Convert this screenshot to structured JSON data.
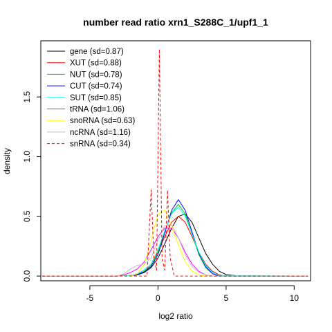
{
  "chart_data": {
    "type": "line",
    "title": "number read ratio xrn1_S288C_1/upf1_1",
    "xlabel": "log2 ratio",
    "ylabel": "density",
    "xlim": [
      -8.6,
      11.2
    ],
    "ylim": [
      -0.04,
      1.97
    ],
    "xticks": [
      -5,
      0,
      5,
      10
    ],
    "yticks": [
      0.0,
      0.5,
      1.0,
      1.5
    ],
    "xtick_labels": [
      "-5",
      "0",
      "5",
      "10"
    ],
    "ytick_labels": [
      "0.0",
      "0.5",
      "1.0",
      "1.5"
    ],
    "grid": false,
    "legend_position": "top-left",
    "series": [
      {
        "name": "gene (sd=0.87)",
        "color": "#000000",
        "dash": "solid",
        "x": [
          -8.5,
          -3,
          -2,
          -1.5,
          -1,
          -0.5,
          0,
          0.5,
          1,
          1.5,
          2,
          2.5,
          3,
          3.5,
          4,
          4.5,
          5,
          6,
          11
        ],
        "y": [
          0,
          0,
          0.003,
          0.01,
          0.03,
          0.07,
          0.15,
          0.27,
          0.4,
          0.5,
          0.52,
          0.45,
          0.32,
          0.19,
          0.1,
          0.04,
          0.012,
          0,
          0
        ]
      },
      {
        "name": "XUT (sd=0.88)",
        "color": "#ff0000",
        "dash": "solid",
        "x": [
          -8.5,
          -3,
          -2,
          -1.5,
          -1,
          -0.5,
          0,
          0.5,
          1,
          1.5,
          2,
          2.5,
          3,
          3.5,
          4,
          4.5,
          5,
          11
        ],
        "y": [
          0,
          0,
          0.005,
          0.02,
          0.05,
          0.1,
          0.2,
          0.33,
          0.45,
          0.5,
          0.45,
          0.33,
          0.2,
          0.1,
          0.04,
          0.01,
          0,
          0
        ]
      },
      {
        "name": "NUT (sd=0.78)",
        "color": "#00cc00",
        "dash": "solid",
        "x": [
          -8.5,
          -3,
          -2,
          -1.5,
          -1,
          -0.5,
          0,
          0.5,
          1,
          1.5,
          2,
          2.5,
          3,
          3.5,
          4,
          4.5,
          11
        ],
        "y": [
          0,
          0,
          0.004,
          0.015,
          0.04,
          0.09,
          0.2,
          0.37,
          0.53,
          0.6,
          0.52,
          0.35,
          0.18,
          0.07,
          0.02,
          0,
          0
        ]
      },
      {
        "name": "CUT (sd=0.74)",
        "color": "#0000ff",
        "dash": "solid",
        "x": [
          -8.5,
          -3,
          -2,
          -1.5,
          -1,
          -0.5,
          0,
          0.5,
          1,
          1.5,
          2,
          2.5,
          3,
          3.5,
          4,
          4.5,
          11
        ],
        "y": [
          0,
          0,
          0.003,
          0.012,
          0.035,
          0.08,
          0.18,
          0.36,
          0.55,
          0.64,
          0.55,
          0.37,
          0.19,
          0.08,
          0.02,
          0,
          0
        ]
      },
      {
        "name": "SUT (sd=0.85)",
        "color": "#00ffff",
        "dash": "solid",
        "x": [
          -8.5,
          -3,
          -2,
          -1.5,
          -1,
          -0.5,
          0,
          0.5,
          1,
          1.5,
          2,
          2.5,
          3,
          3.5,
          4,
          4.5,
          11
        ],
        "y": [
          0,
          0,
          0.005,
          0.02,
          0.05,
          0.1,
          0.22,
          0.38,
          0.52,
          0.58,
          0.5,
          0.35,
          0.2,
          0.09,
          0.03,
          0.005,
          0
        ]
      },
      {
        "name": "tRNA (sd=1.06)",
        "color": "#ff00ff",
        "dash": "solid",
        "x": [
          -8.5,
          -3,
          -2.5,
          -2,
          -1.5,
          -1,
          -0.5,
          0,
          0.5,
          1,
          1.5,
          2,
          2.5,
          3,
          3.5,
          4,
          11
        ],
        "y": [
          0,
          0,
          0.01,
          0.03,
          0.06,
          0.12,
          0.22,
          0.33,
          0.4,
          0.4,
          0.32,
          0.2,
          0.1,
          0.04,
          0.01,
          0,
          0
        ]
      },
      {
        "name": "snoRNA (sd=0.63)",
        "color": "#ffff00",
        "dash": "solid",
        "x": [
          -8.5,
          -2,
          -1.5,
          -1,
          -0.5,
          0,
          0.5,
          1,
          1.5,
          2,
          2.5,
          3,
          3.5,
          11
        ],
        "y": [
          0,
          0,
          0.02,
          0.1,
          0.3,
          0.52,
          0.55,
          0.42,
          0.26,
          0.12,
          0.04,
          0.01,
          0,
          0
        ]
      },
      {
        "name": "ncRNA (sd=1.16)",
        "color": "#c0c0c0",
        "dash": "solid",
        "x": [
          -8.5,
          -3,
          -2.5,
          -2,
          -1.5,
          -1,
          -0.5,
          0,
          0.5,
          1,
          1.5,
          2,
          2.5,
          3,
          3.5,
          4,
          11
        ],
        "y": [
          0,
          0,
          0.02,
          0.06,
          0.09,
          0.1,
          0.15,
          0.3,
          0.42,
          0.43,
          0.32,
          0.18,
          0.08,
          0.03,
          0.01,
          0,
          0
        ]
      },
      {
        "name": "snRNA (sd=0.34)",
        "color": "#ff0000",
        "dash": "dashed",
        "x": [
          -8.5,
          -0.8,
          -0.5,
          -0.3,
          -0.1,
          0.1,
          0.3,
          0.5,
          0.7,
          0.9,
          1.2,
          11
        ],
        "y": [
          0,
          0,
          0.72,
          0.15,
          0.05,
          1.9,
          0.15,
          0.05,
          0.72,
          0.15,
          0,
          0
        ]
      }
    ]
  }
}
